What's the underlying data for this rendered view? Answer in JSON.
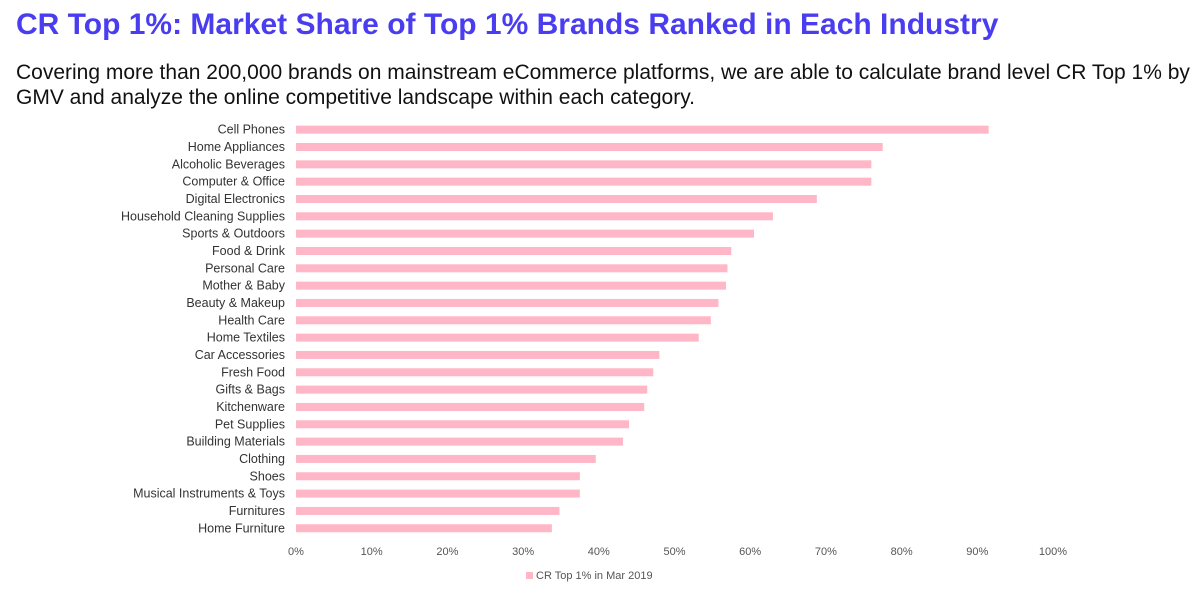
{
  "title": "CR Top 1%: Market Share of Top 1% Brands Ranked in Each Industry",
  "subtitle": "Covering more than 200,000 brands on mainstream eCommerce platforms, we are able to calculate brand level CR Top 1% by GMV and analyze the online competitive landscape within each category.",
  "colors": {
    "title": "#4a3df0",
    "bar": "#ffb6c6"
  },
  "chart_data": {
    "type": "bar",
    "orientation": "horizontal",
    "categories": [
      "Cell Phones",
      "Home Appliances",
      "Alcoholic Beverages",
      "Computer & Office",
      "Digital Electronics",
      "Household Cleaning Supplies",
      "Sports & Outdoors",
      "Food & Drink",
      "Personal Care",
      "Mother & Baby",
      "Beauty & Makeup",
      "Health Care",
      "Home Textiles",
      "Car Accessories",
      "Fresh Food",
      "Gifts & Bags",
      "Kitchenware",
      "Pet Supplies",
      "Building Materials",
      "Clothing",
      "Shoes",
      "Musical Instruments & Toys",
      "Furnitures",
      "Home Furniture"
    ],
    "series": [
      {
        "name": "CR Top 1% in Mar 2019",
        "values": [
          91.5,
          77.5,
          76,
          76,
          68.8,
          63,
          60.5,
          57.5,
          57,
          56.8,
          55.8,
          54.8,
          53.2,
          48,
          47.2,
          46.4,
          46,
          44,
          43.2,
          39.6,
          37.5,
          37.5,
          34.8,
          33.8
        ]
      }
    ],
    "xlim": [
      0,
      100
    ],
    "xticks": [
      "0%",
      "10%",
      "20%",
      "30%",
      "40%",
      "50%",
      "60%",
      "70%",
      "80%",
      "90%",
      "100%"
    ],
    "grid": false,
    "legend": "bottom-center"
  }
}
